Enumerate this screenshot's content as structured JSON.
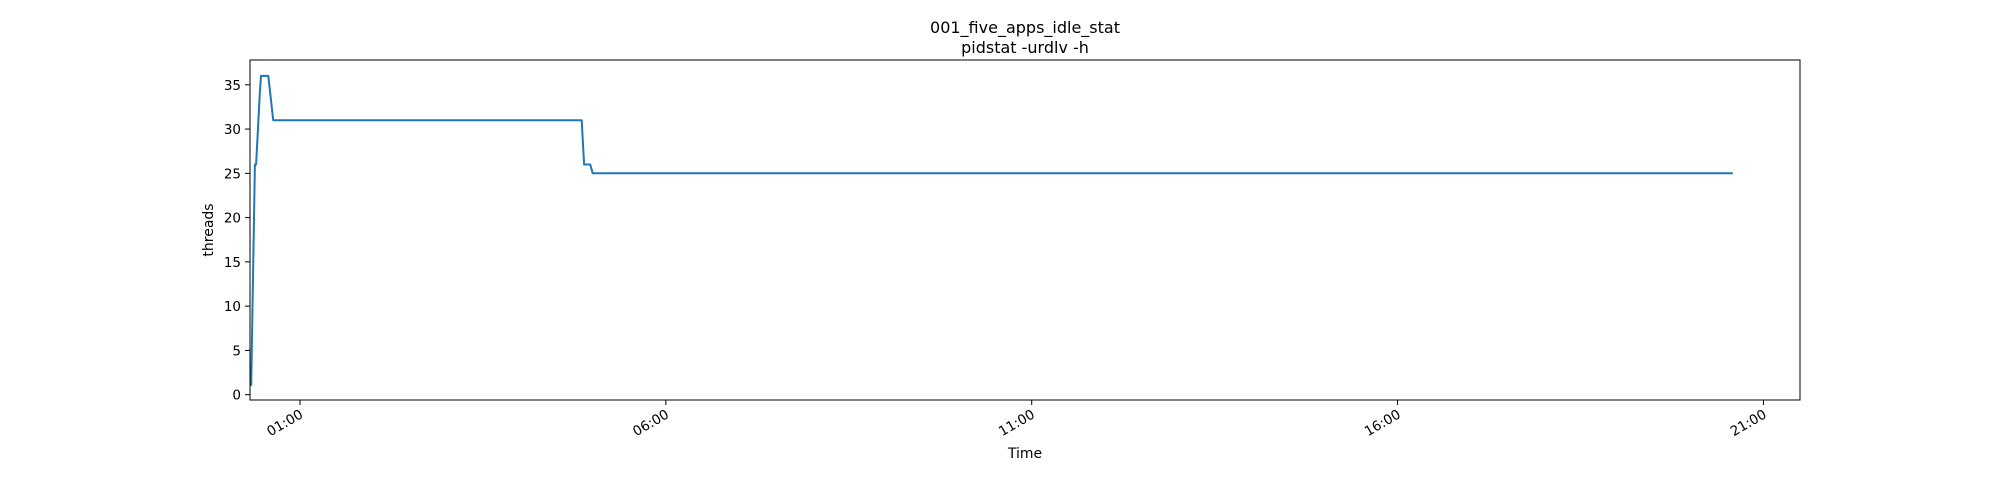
{
  "chart_data": {
    "type": "line",
    "title": "001_five_apps_idle_stat",
    "subtitle": "pidstat -urdlv -h",
    "xlabel": "Time",
    "ylabel": "threads",
    "ylim": [
      -0.6,
      37.8
    ],
    "xlim": [
      "00:19",
      "21:30"
    ],
    "grid": false,
    "legend": "none",
    "series_color": "#1f77b4",
    "x_tick_labels": [
      "01:00",
      "06:00",
      "11:00",
      "16:00",
      "21:00"
    ],
    "y_tick_labels": [
      "0",
      "5",
      "10",
      "15",
      "20",
      "25",
      "30",
      "35"
    ],
    "series": [
      {
        "x": [
          "00:20",
          "00:23",
          "00:24",
          "00:27",
          "00:28",
          "00:30",
          "00:34",
          "00:38",
          "00:40",
          "04:51",
          "04:53",
          "04:58",
          "05:00",
          "20:35"
        ],
        "values": [
          1,
          26,
          26,
          34,
          36,
          36,
          36,
          31,
          31,
          31,
          26,
          26,
          25,
          25
        ]
      }
    ]
  }
}
